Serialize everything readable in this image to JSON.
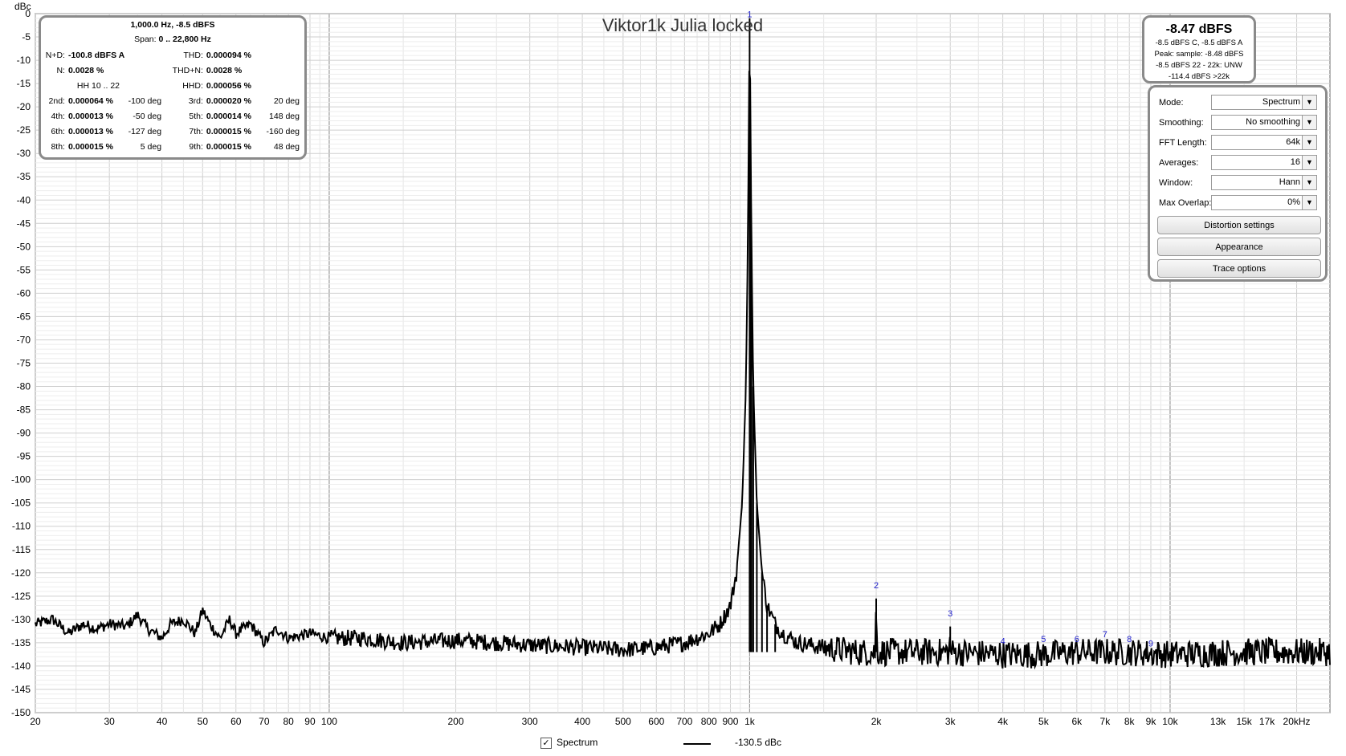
{
  "chart_data": {
    "type": "line",
    "title": "Viktor1k Julia locked",
    "y_unit": "dBc",
    "xlabel": "",
    "ylabel": "dBc",
    "x_scale": "log",
    "xlim": [
      20,
      24000
    ],
    "ylim": [
      -150,
      0
    ],
    "grid": true,
    "y_ticks": [
      "0",
      "-5",
      "-10",
      "-15",
      "-20",
      "-25",
      "-30",
      "-35",
      "-40",
      "-45",
      "-50",
      "-55",
      "-60",
      "-65",
      "-70",
      "-75",
      "-80",
      "-85",
      "-90",
      "-95",
      "-100",
      "-105",
      "-110",
      "-115",
      "-120",
      "-125",
      "-130",
      "-135",
      "-140",
      "-145",
      "-150"
    ],
    "x_ticks": [
      {
        "v": 20,
        "t": "20"
      },
      {
        "v": 30,
        "t": "30"
      },
      {
        "v": 40,
        "t": "40"
      },
      {
        "v": 50,
        "t": "50"
      },
      {
        "v": 60,
        "t": "60"
      },
      {
        "v": 70,
        "t": "70"
      },
      {
        "v": 80,
        "t": "80"
      },
      {
        "v": 90,
        "t": "90"
      },
      {
        "v": 100,
        "t": "100"
      },
      {
        "v": 200,
        "t": "200"
      },
      {
        "v": 300,
        "t": "300"
      },
      {
        "v": 400,
        "t": "400"
      },
      {
        "v": 500,
        "t": "500"
      },
      {
        "v": 600,
        "t": "600"
      },
      {
        "v": 700,
        "t": "700"
      },
      {
        "v": 800,
        "t": "800"
      },
      {
        "v": 900,
        "t": "900"
      },
      {
        "v": 1000,
        "t": "1k"
      },
      {
        "v": 2000,
        "t": "2k"
      },
      {
        "v": 3000,
        "t": "3k"
      },
      {
        "v": 4000,
        "t": "4k"
      },
      {
        "v": 5000,
        "t": "5k"
      },
      {
        "v": 6000,
        "t": "6k"
      },
      {
        "v": 7000,
        "t": "7k"
      },
      {
        "v": 8000,
        "t": "8k"
      },
      {
        "v": 9000,
        "t": "9k"
      },
      {
        "v": 10000,
        "t": "10k"
      },
      {
        "v": 13000,
        "t": "13k"
      },
      {
        "v": 15000,
        "t": "15k"
      },
      {
        "v": 17000,
        "t": "17k"
      },
      {
        "v": 20000,
        "t": "20kHz"
      }
    ],
    "series": [
      {
        "color": "#000000",
        "line_width": 2,
        "points": [
          [
            20,
            -131
          ],
          [
            22,
            -130
          ],
          [
            24,
            -133
          ],
          [
            26,
            -131
          ],
          [
            28,
            -132
          ],
          [
            30,
            -131
          ],
          [
            33,
            -131.5
          ],
          [
            35,
            -129
          ],
          [
            37,
            -132
          ],
          [
            40,
            -134
          ],
          [
            42,
            -131
          ],
          [
            45,
            -130
          ],
          [
            48,
            -133
          ],
          [
            50,
            -128
          ],
          [
            52,
            -131
          ],
          [
            55,
            -134
          ],
          [
            58,
            -130
          ],
          [
            60,
            -133
          ],
          [
            65,
            -131
          ],
          [
            70,
            -135
          ],
          [
            75,
            -132
          ],
          [
            80,
            -134
          ],
          [
            90,
            -133
          ],
          [
            100,
            -134
          ],
          [
            120,
            -134
          ],
          [
            150,
            -135
          ],
          [
            200,
            -134.5
          ],
          [
            250,
            -135
          ],
          [
            300,
            -135.5
          ],
          [
            400,
            -136
          ],
          [
            500,
            -136.5
          ],
          [
            600,
            -136
          ],
          [
            700,
            -135
          ],
          [
            800,
            -133
          ],
          [
            850,
            -131
          ],
          [
            900,
            -127
          ],
          [
            930,
            -120
          ],
          [
            960,
            -105
          ],
          [
            980,
            -80
          ],
          [
            990,
            -50
          ],
          [
            995,
            -25
          ],
          [
            1000,
            -1
          ],
          [
            1005,
            -25
          ],
          [
            1010,
            -50
          ],
          [
            1020,
            -80
          ],
          [
            1040,
            -105
          ],
          [
            1070,
            -120
          ],
          [
            1100,
            -127
          ],
          [
            1150,
            -131
          ],
          [
            1200,
            -133
          ],
          [
            1300,
            -135
          ],
          [
            1500,
            -136
          ],
          [
            1800,
            -137
          ],
          [
            1990,
            -137
          ],
          [
            2000,
            -125.5
          ],
          [
            2010,
            -137
          ],
          [
            2500,
            -137
          ],
          [
            2990,
            -137
          ],
          [
            3000,
            -131.5
          ],
          [
            3010,
            -137
          ],
          [
            4000,
            -137.5
          ],
          [
            5000,
            -137.5
          ],
          [
            6000,
            -137
          ],
          [
            7000,
            -137
          ],
          [
            8000,
            -137
          ],
          [
            10000,
            -137.5
          ],
          [
            15000,
            -137
          ],
          [
            24000,
            -137
          ]
        ]
      }
    ],
    "annotations": [
      {
        "label": "1",
        "x": 1000,
        "y": -1.5
      },
      {
        "label": "2",
        "x": 2000,
        "y": -124
      },
      {
        "label": "3",
        "x": 3000,
        "y": -130
      },
      {
        "label": "4",
        "x": 4000,
        "y": -136
      },
      {
        "label": "5",
        "x": 5000,
        "y": -135.5
      },
      {
        "label": "6",
        "x": 6000,
        "y": -135.5
      },
      {
        "label": "7",
        "x": 7000,
        "y": -134.5
      },
      {
        "label": "8",
        "x": 8000,
        "y": -135.5
      },
      {
        "label": "9",
        "x": 9000,
        "y": -136.5
      }
    ]
  },
  "stats": {
    "freq_level": "1,000.0 Hz, -8.5 dBFS",
    "span_label": "Span:",
    "span_value": "0 .. 22,800 Hz",
    "nd_label": "N+D:",
    "nd_value": "-100.8 dBFS A",
    "thd_label": "THD:",
    "thd_value": "0.000094 %",
    "n_label": "N:",
    "n_value": "0.0028 %",
    "thdn_label": "THD+N:",
    "thdn_value": "0.0028 %",
    "hh_label": "HH 10 .. 22",
    "hhd_label": "HHD:",
    "hhd_value": "0.000056 %",
    "harmonics": [
      {
        "k1": "2nd:",
        "v1": "0.000064 %",
        "d1": "-100 deg",
        "k2": "3rd:",
        "v2": "0.000020 %",
        "d2": "20 deg"
      },
      {
        "k1": "4th:",
        "v1": "0.000013 %",
        "d1": "-50 deg",
        "k2": "5th:",
        "v2": "0.000014 %",
        "d2": "148 deg"
      },
      {
        "k1": "6th:",
        "v1": "0.000013 %",
        "d1": "-127 deg",
        "k2": "7th:",
        "v2": "0.000015 %",
        "d2": "-160 deg"
      },
      {
        "k1": "8th:",
        "v1": "0.000015 %",
        "d1": "5 deg",
        "k2": "9th:",
        "v2": "0.000015 %",
        "d2": "48 deg"
      }
    ]
  },
  "level": {
    "main": "-8.47 dBFS",
    "line1": "-8.5 dBFS C, -8.5 dBFS A",
    "line2": "Peak: sample: -8.48 dBFS",
    "line3": "-8.5 dBFS 22 - 22k: UNW",
    "line4": "-114.4 dBFS >22k"
  },
  "controls": {
    "mode_label": "Mode:",
    "mode_value": "Spectrum",
    "smoothing_label": "Smoothing:",
    "smoothing_value": "No  smoothing",
    "fft_label": "FFT Length:",
    "fft_value": "64k",
    "averages_label": "Averages:",
    "averages_value": "16",
    "window_label": "Window:",
    "window_value": "Hann",
    "overlap_label": "Max Overlap:",
    "overlap_value": "0%",
    "distortion_button": "Distortion settings",
    "appearance_button": "Appearance",
    "trace_button": "Trace options"
  },
  "legend": {
    "checkbox_mark": "✓",
    "series_label": "Spectrum",
    "value": "-130.5 dBc"
  }
}
